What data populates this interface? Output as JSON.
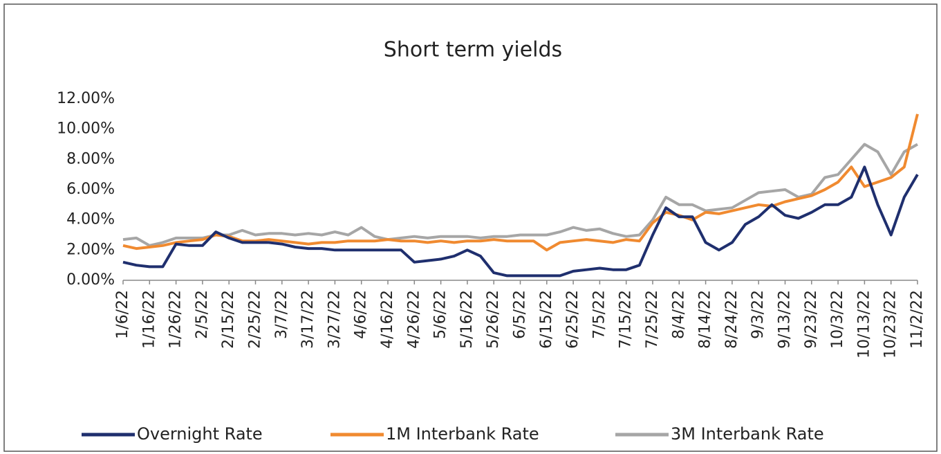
{
  "chart_data": {
    "type": "line",
    "title": "Short term yields",
    "categories": [
      "1/6/22",
      null,
      "1/16/22",
      null,
      "1/26/22",
      null,
      "2/5/22",
      null,
      "2/15/22",
      null,
      "2/25/22",
      null,
      "3/7/22",
      null,
      "3/17/22",
      null,
      "3/27/22",
      null,
      "4/6/22",
      null,
      "4/16/22",
      null,
      "4/26/22",
      null,
      "5/6/22",
      null,
      "5/16/22",
      null,
      "5/26/22",
      null,
      "6/5/22",
      null,
      "6/15/22",
      null,
      "6/25/22",
      null,
      "7/5/22",
      null,
      "7/15/22",
      null,
      "7/25/22",
      null,
      "8/4/22",
      null,
      "8/14/22",
      null,
      "8/24/22",
      null,
      "9/3/22",
      null,
      "9/13/22",
      null,
      "9/23/22",
      null,
      "10/3/22",
      null,
      "10/13/22",
      null,
      "10/23/22",
      null,
      "11/2/22"
    ],
    "series": [
      {
        "name": "Overnight Rate",
        "color": "#1f2f6e",
        "values": [
          1.2,
          1.0,
          0.9,
          0.9,
          2.4,
          2.3,
          2.3,
          3.2,
          2.8,
          2.5,
          2.5,
          2.5,
          2.4,
          2.2,
          2.1,
          2.1,
          2.0,
          2.0,
          2.0,
          2.0,
          2.0,
          2.0,
          1.2,
          1.3,
          1.4,
          1.6,
          2.0,
          1.6,
          0.5,
          0.3,
          0.3,
          0.3,
          0.3,
          0.3,
          0.6,
          0.7,
          0.8,
          0.7,
          0.7,
          1.0,
          3.0,
          4.8,
          4.2,
          4.2,
          2.5,
          2.0,
          2.5,
          3.7,
          4.2,
          5.0,
          4.3,
          4.1,
          4.5,
          5.0,
          5.0,
          5.5,
          7.5,
          5.0,
          3.0,
          5.5,
          7.0
        ]
      },
      {
        "name": "1M Interbank Rate",
        "color": "#f08a30",
        "values": [
          2.3,
          2.1,
          2.2,
          2.3,
          2.5,
          2.6,
          2.7,
          3.0,
          2.9,
          2.6,
          2.6,
          2.7,
          2.6,
          2.5,
          2.4,
          2.5,
          2.5,
          2.6,
          2.6,
          2.6,
          2.7,
          2.6,
          2.6,
          2.5,
          2.6,
          2.5,
          2.6,
          2.6,
          2.7,
          2.6,
          2.6,
          2.6,
          2.0,
          2.5,
          2.6,
          2.7,
          2.6,
          2.5,
          2.7,
          2.6,
          3.8,
          4.5,
          4.3,
          4.0,
          4.5,
          4.4,
          4.6,
          4.8,
          5.0,
          4.9,
          5.2,
          5.4,
          5.6,
          6.0,
          6.5,
          7.5,
          6.2,
          6.5,
          6.8,
          7.5,
          11.0
        ]
      },
      {
        "name": "3M Interbank Rate",
        "color": "#a6a6a6",
        "values": [
          2.7,
          2.8,
          2.3,
          2.5,
          2.8,
          2.8,
          2.8,
          3.0,
          3.0,
          3.3,
          3.0,
          3.1,
          3.1,
          3.0,
          3.1,
          3.0,
          3.2,
          3.0,
          3.5,
          2.9,
          2.7,
          2.8,
          2.9,
          2.8,
          2.9,
          2.9,
          2.9,
          2.8,
          2.9,
          2.9,
          3.0,
          3.0,
          3.0,
          3.2,
          3.5,
          3.3,
          3.4,
          3.1,
          2.9,
          3.0,
          4.0,
          5.5,
          5.0,
          5.0,
          4.6,
          4.7,
          4.8,
          5.3,
          5.8,
          5.9,
          6.0,
          5.5,
          5.7,
          6.8,
          7.0,
          8.0,
          9.0,
          8.5,
          7.0,
          8.5,
          9.0
        ]
      }
    ],
    "ylim": [
      0,
      12
    ],
    "yticks": [
      {
        "value": 0,
        "label": "0.00%"
      },
      {
        "value": 2,
        "label": "2.00%"
      },
      {
        "value": 4,
        "label": "4.00%"
      },
      {
        "value": 6,
        "label": "6.00%"
      },
      {
        "value": 8,
        "label": "8.00%"
      },
      {
        "value": 10,
        "label": "10.00%"
      },
      {
        "value": 12,
        "label": "12.00%"
      }
    ]
  }
}
